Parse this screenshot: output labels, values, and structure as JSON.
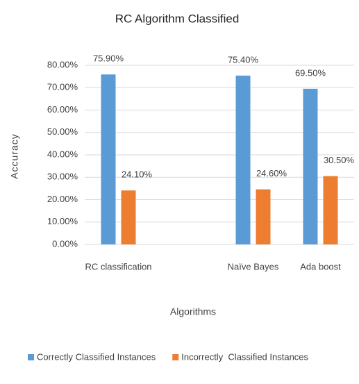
{
  "chart_data": {
    "type": "bar",
    "title": "RC Algorithm Classified",
    "x_label": "Algorithms",
    "y_label": "Accuracy",
    "categories": [
      "RC classification",
      null,
      "Naïve Bayes",
      "Ada boost"
    ],
    "series": [
      {
        "name": "Correctly Classified Instances",
        "color": "#5b9bd5",
        "values": [
          75.9,
          null,
          75.4,
          69.5
        ],
        "value_labels": [
          "75.90%",
          null,
          "75.40%",
          "69.50%"
        ]
      },
      {
        "name": "Incorrectly  Classified Instances",
        "color": "#ed7d31",
        "values": [
          24.1,
          null,
          24.6,
          30.5
        ],
        "value_labels": [
          "24.10%",
          null,
          "24.60%",
          "30.50%"
        ]
      }
    ],
    "ylim": [
      0,
      80
    ],
    "yticks": [
      {
        "value": 0,
        "label": "0.00%"
      },
      {
        "value": 10,
        "label": "10.00%"
      },
      {
        "value": 20,
        "label": "20.00%"
      },
      {
        "value": 30,
        "label": "30.00%"
      },
      {
        "value": 40,
        "label": "40.00%"
      },
      {
        "value": 50,
        "label": "50.00%"
      },
      {
        "value": 60,
        "label": "60.00%"
      },
      {
        "value": 70,
        "label": "70.00%"
      },
      {
        "value": 80,
        "label": "80.00%"
      }
    ],
    "grid": true
  }
}
